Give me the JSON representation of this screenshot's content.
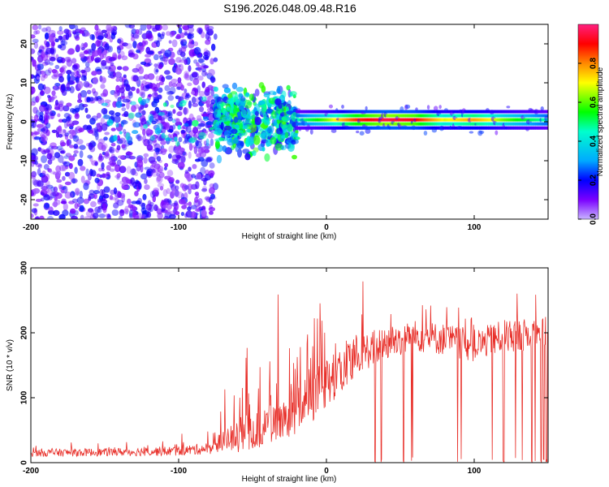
{
  "figure_title": "S196.2026.048.09.48.R16",
  "colors": {
    "snr_line": "#e8302a",
    "frame": "#000000",
    "background": "#ffffff"
  },
  "chart_data": [
    {
      "type": "heatmap",
      "title": "S196.2026.048.09.48.R16",
      "xlabel": "Height of straight line (km)",
      "ylabel": "Frequency (Hz)",
      "xlim": [
        -200,
        150
      ],
      "ylim": [
        -25,
        25
      ],
      "xticks": [
        -200,
        -100,
        0,
        100
      ],
      "yticks": [
        -20,
        -10,
        0,
        10,
        20
      ],
      "colorbar": {
        "label": "Normalized spectral amplitude",
        "range": [
          0,
          1
        ],
        "ticks": [
          0.0,
          0.2,
          0.4,
          0.6,
          0.8
        ],
        "tick_labels": [
          "0.0",
          "0.2",
          "0.4",
          "0.6",
          "0.8"
        ],
        "colormap": [
          "#c8b4ff",
          "#7a00ff",
          "#0000ff",
          "#00aaff",
          "#00ffcc",
          "#00ff00",
          "#ffff00",
          "#ff8800",
          "#ff0000",
          "#ff2080"
        ]
      },
      "regions": [
        {
          "name": "noise",
          "x_range": [
            -200,
            -75
          ],
          "freq_range": [
            -25,
            25
          ],
          "amplitude": 0.15
        },
        {
          "name": "transition",
          "x_range": [
            -75,
            -20
          ],
          "freq_range": [
            -8,
            8
          ],
          "amplitude": 0.35
        },
        {
          "name": "signal_band",
          "x_range": [
            -20,
            150
          ],
          "center_freq": 0.5,
          "half_width_hz": 1.5,
          "amplitude_profile": [
            {
              "x": -20,
              "a": 0.45
            },
            {
              "x": 0,
              "a": 0.6
            },
            {
              "x": 20,
              "a": 0.85
            },
            {
              "x": 40,
              "a": 0.95
            },
            {
              "x": 60,
              "a": 0.9
            },
            {
              "x": 80,
              "a": 0.65
            },
            {
              "x": 100,
              "a": 0.75
            },
            {
              "x": 120,
              "a": 0.6
            },
            {
              "x": 150,
              "a": 0.45
            }
          ]
        }
      ]
    },
    {
      "type": "line",
      "xlabel": "Height of straight line (km)",
      "ylabel": "SNR (10 * v/v)",
      "xlim": [
        -200,
        150
      ],
      "ylim": [
        0,
        300
      ],
      "xticks": [
        -200,
        -100,
        0,
        100
      ],
      "yticks": [
        0,
        100,
        200,
        300
      ],
      "series": [
        {
          "name": "SNR",
          "color": "#e8302a",
          "trend": [
            {
              "x": -200,
              "mean": 15,
              "spread": 12
            },
            {
              "x": -150,
              "mean": 16,
              "spread": 12
            },
            {
              "x": -100,
              "mean": 18,
              "spread": 15
            },
            {
              "x": -80,
              "mean": 22,
              "spread": 18
            },
            {
              "x": -60,
              "mean": 40,
              "spread": 50
            },
            {
              "x": -40,
              "mean": 55,
              "spread": 60
            },
            {
              "x": -20,
              "mean": 80,
              "spread": 70
            },
            {
              "x": 0,
              "mean": 120,
              "spread": 80
            },
            {
              "x": 20,
              "mean": 165,
              "spread": 60
            },
            {
              "x": 40,
              "mean": 185,
              "spread": 55
            },
            {
              "x": 60,
              "mean": 195,
              "spread": 50
            },
            {
              "x": 80,
              "mean": 190,
              "spread": 50
            },
            {
              "x": 100,
              "mean": 180,
              "spread": 50
            },
            {
              "x": 120,
              "mean": 195,
              "spread": 50
            },
            {
              "x": 150,
              "mean": 200,
              "spread": 50
            }
          ],
          "dropouts_x": [
            33,
            37,
            52,
            58,
            89,
            91,
            100,
            112,
            120,
            128,
            132,
            137,
            139,
            141,
            145,
            147,
            149
          ]
        }
      ]
    }
  ]
}
